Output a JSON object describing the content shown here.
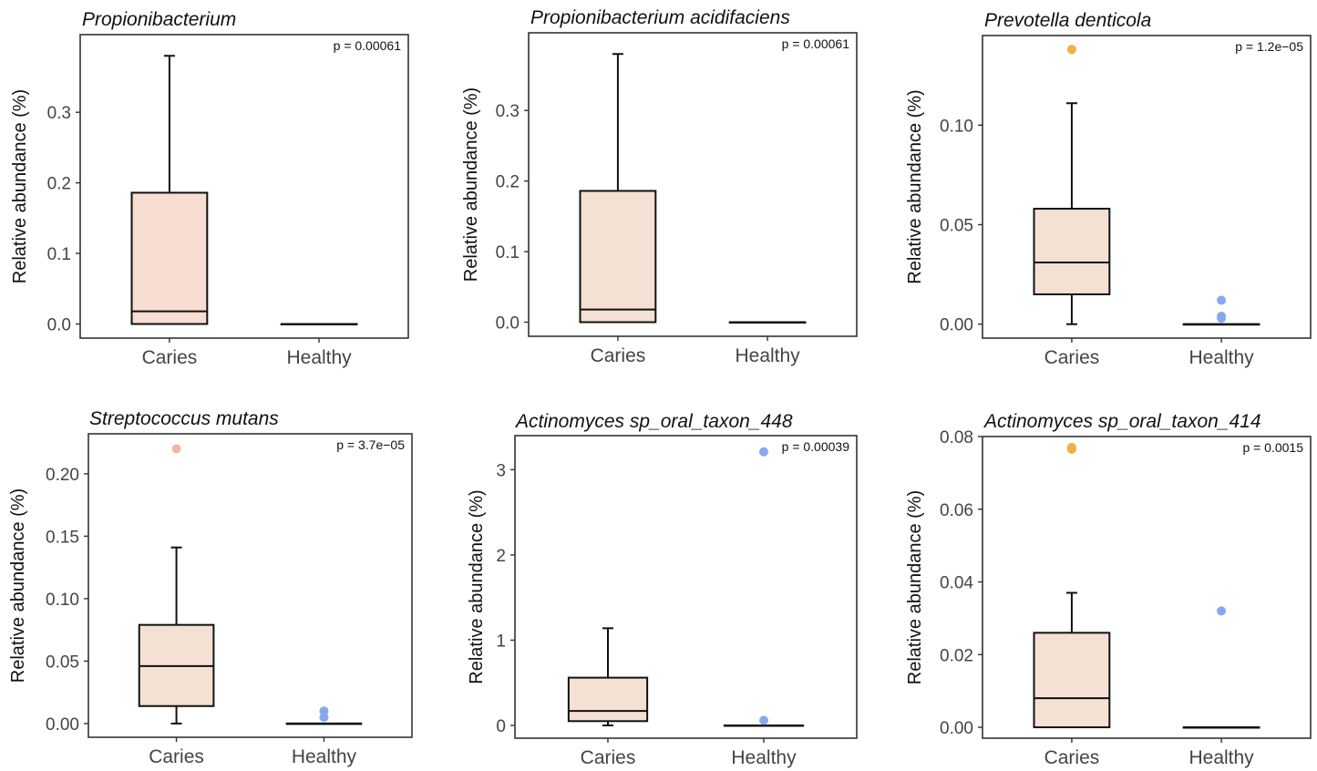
{
  "chart_data": [
    {
      "type": "box",
      "title": "Propionibacterium",
      "ylabel": "Relative abundance (%)",
      "pvalue": "p = 0.00061",
      "ylim": [
        -0.02,
        0.41
      ],
      "yticks": [
        0.0,
        0.1,
        0.2,
        0.3
      ],
      "yticklabels": [
        "0.0",
        "0.1",
        "0.2",
        "0.3"
      ],
      "categories": [
        "Caries",
        "Healthy"
      ],
      "boxes": [
        {
          "min": 0.0,
          "q1": 0.0,
          "median": 0.018,
          "q3": 0.186,
          "max": 0.38,
          "outliers": [],
          "fill": "#f8ddd2",
          "outlier_color": ""
        },
        {
          "min": 0.0,
          "q1": 0.0,
          "median": 0.0,
          "q3": 0.0,
          "max": 0.0,
          "outliers": [],
          "fill": "#f8ddd2",
          "outlier_color": ""
        }
      ]
    },
    {
      "type": "box",
      "title": "Propionibacterium acidifaciens",
      "ylabel": "Relative abundance (%)",
      "pvalue": "p = 0.00061",
      "ylim": [
        -0.02,
        0.41
      ],
      "yticks": [
        0.0,
        0.1,
        0.2,
        0.3
      ],
      "yticklabels": [
        "0.0",
        "0.1",
        "0.2",
        "0.3"
      ],
      "categories": [
        "Caries",
        "Healthy"
      ],
      "boxes": [
        {
          "min": 0.0,
          "q1": 0.0,
          "median": 0.018,
          "q3": 0.186,
          "max": 0.38,
          "outliers": [],
          "fill": "#f5e0d4",
          "outlier_color": ""
        },
        {
          "min": 0.0,
          "q1": 0.0,
          "median": 0.0,
          "q3": 0.0,
          "max": 0.0,
          "outliers": [],
          "fill": "#f5e0d4",
          "outlier_color": ""
        }
      ]
    },
    {
      "type": "box",
      "title": "Prevotella denticola",
      "ylabel": "Relative abundance (%)",
      "pvalue": "p = 1.2e−05",
      "ylim": [
        -0.007,
        0.145
      ],
      "yticks": [
        0.0,
        0.05,
        0.1
      ],
      "yticklabels": [
        "0.00",
        "0.05",
        "0.10"
      ],
      "categories": [
        "Caries",
        "Healthy"
      ],
      "boxes": [
        {
          "min": 0.0,
          "q1": 0.015,
          "median": 0.031,
          "q3": 0.058,
          "max": 0.111,
          "outliers": [
            0.138
          ],
          "fill": "#f5e0d4",
          "outlier_color": "#f0b13e"
        },
        {
          "min": 0.0,
          "q1": 0.0,
          "median": 0.0,
          "q3": 0.0,
          "max": 0.0,
          "outliers": [
            0.012,
            0.004,
            0.003
          ],
          "fill": "#f5e0d4",
          "outlier_color": "#88a8ee"
        }
      ]
    },
    {
      "type": "box",
      "title": "Streptococcus mutans",
      "ylabel": "Relative abundance (%)",
      "pvalue": "p = 3.7e−05",
      "ylim": [
        -0.011,
        0.232
      ],
      "yticks": [
        0.0,
        0.05,
        0.1,
        0.15,
        0.2
      ],
      "yticklabels": [
        "0.00",
        "0.05",
        "0.10",
        "0.15",
        "0.20"
      ],
      "categories": [
        "Caries",
        "Healthy"
      ],
      "boxes": [
        {
          "min": 0.0,
          "q1": 0.014,
          "median": 0.046,
          "q3": 0.079,
          "max": 0.141,
          "outliers": [
            0.22
          ],
          "fill": "#f5e0d4",
          "outlier_color": "#f1b8a0"
        },
        {
          "min": 0.0,
          "q1": 0.0,
          "median": 0.0,
          "q3": 0.0,
          "max": 0.0,
          "outliers": [
            0.01,
            0.005
          ],
          "fill": "#f5e0d4",
          "outlier_color": "#88a8ee"
        }
      ]
    },
    {
      "type": "box",
      "title": "Actinomyces sp_oral_taxon_448",
      "ylabel": "Relative abundance (%)",
      "pvalue": "p = 0.00039",
      "ylim": [
        -0.15,
        3.4
      ],
      "yticks": [
        0,
        1,
        2,
        3
      ],
      "yticklabels": [
        "0",
        "1",
        "2",
        "3"
      ],
      "categories": [
        "Caries",
        "Healthy"
      ],
      "boxes": [
        {
          "min": 0.0,
          "q1": 0.05,
          "median": 0.17,
          "q3": 0.56,
          "max": 1.14,
          "outliers": [],
          "fill": "#f5e0d4",
          "outlier_color": ""
        },
        {
          "min": 0.0,
          "q1": 0.0,
          "median": 0.0,
          "q3": 0.0,
          "max": 0.0,
          "outliers": [
            3.21,
            0.06
          ],
          "fill": "#f5e0d4",
          "outlier_color": "#88a8ee"
        }
      ]
    },
    {
      "type": "box",
      "title": "Actinomyces sp_oral_taxon_414",
      "ylabel": "Relative abundance (%)",
      "pvalue": "p = 0.0015",
      "ylim": [
        -0.003,
        0.08
      ],
      "yticks": [
        0.0,
        0.02,
        0.04,
        0.06,
        0.08
      ],
      "yticklabels": [
        "0.00",
        "0.02",
        "0.04",
        "0.06",
        "0.08"
      ],
      "categories": [
        "Caries",
        "Healthy"
      ],
      "boxes": [
        {
          "min": 0.0,
          "q1": 0.0,
          "median": 0.008,
          "q3": 0.026,
          "max": 0.037,
          "outliers": [
            0.077,
            0.0765
          ],
          "fill": "#f5e0d4",
          "outlier_color": "#f0b13e"
        },
        {
          "min": 0.0,
          "q1": 0.0,
          "median": 0.0,
          "q3": 0.0,
          "max": 0.0,
          "outliers": [
            0.032
          ],
          "fill": "#f5e0d4",
          "outlier_color": "#88a8ee"
        }
      ]
    }
  ]
}
